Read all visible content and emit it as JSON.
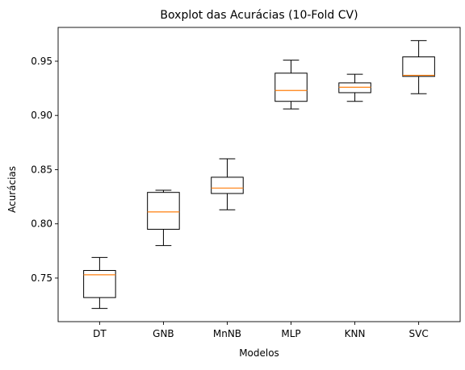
{
  "chart_data": {
    "type": "boxplot",
    "title": "Boxplot das Acurácias (10-Fold CV)",
    "xlabel": "Modelos",
    "ylabel": "Acurácias",
    "categories": [
      "DT",
      "GNB",
      "MnNB",
      "MLP",
      "KNN",
      "SVC"
    ],
    "boxes": [
      {
        "name": "DT",
        "whisker_low": 0.722,
        "q1": 0.732,
        "median": 0.753,
        "q3": 0.757,
        "whisker_high": 0.769
      },
      {
        "name": "GNB",
        "whisker_low": 0.78,
        "q1": 0.795,
        "median": 0.811,
        "q3": 0.829,
        "whisker_high": 0.831
      },
      {
        "name": "MnNB",
        "whisker_low": 0.813,
        "q1": 0.828,
        "median": 0.833,
        "q3": 0.843,
        "whisker_high": 0.86
      },
      {
        "name": "MLP",
        "whisker_low": 0.906,
        "q1": 0.913,
        "median": 0.923,
        "q3": 0.939,
        "whisker_high": 0.951
      },
      {
        "name": "KNN",
        "whisker_low": 0.913,
        "q1": 0.921,
        "median": 0.926,
        "q3": 0.93,
        "whisker_high": 0.938
      },
      {
        "name": "SVC",
        "whisker_low": 0.92,
        "q1": 0.936,
        "median": 0.937,
        "q3": 0.954,
        "whisker_high": 0.969
      }
    ],
    "ylim": [
      0.7098,
      0.9812
    ],
    "yticks": [
      0.75,
      0.8,
      0.85,
      0.9,
      0.95
    ],
    "ytick_labels": [
      "0.75",
      "0.80",
      "0.85",
      "0.90",
      "0.95"
    ],
    "grid": false,
    "colors": {
      "box": "#000000",
      "median": "#ff7f0e",
      "whisker": "#000000",
      "background": "#ffffff"
    }
  }
}
